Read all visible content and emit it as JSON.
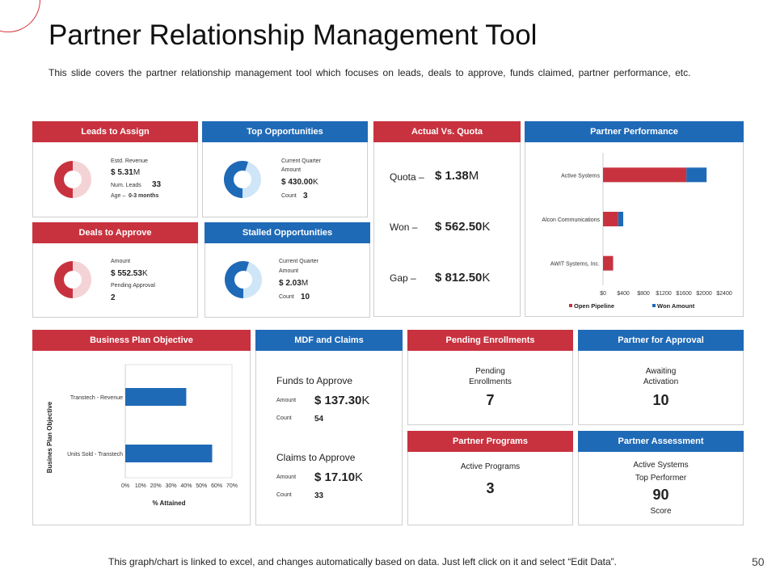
{
  "slide": {
    "title": "Partner Relationship Management Tool",
    "subtitle": "This slide covers the partner relationship management tool which focuses on leads, deals to approve, funds claimed, partner performance, etc.",
    "footer": "This graph/chart is linked to excel, and changes automatically based on data. Just left click on it and select “Edit Data”.",
    "page_number": "50"
  },
  "colors": {
    "red": "#c8323f",
    "blue": "#1f6ab7",
    "light_red": "#f4d3d6",
    "light_blue": "#cfe5f8"
  },
  "leads": {
    "header": "Leads to Assign",
    "rev_label": "Estd. Revenue",
    "rev_value": "$ 5.31",
    "rev_unit": "M",
    "num_label": "Num. Leads",
    "num_value": "33",
    "age_label": "Age –",
    "age_value": "0-3 months"
  },
  "top_opps": {
    "header": "Top Opportunities",
    "cq_label": "Current Quarter",
    "amount_label": "Amount",
    "amount_value": "$ 430.00",
    "amount_unit": "K",
    "count_label": "Count",
    "count_value": "3"
  },
  "deals": {
    "header": "Deals to Approve",
    "amount_label": "Amount",
    "amount_value": "$ 552.53",
    "amount_unit": "K",
    "pending_label": "Pending Approval",
    "pending_value": "2"
  },
  "stalled": {
    "header": "Stalled Opportunities",
    "cq_label": "Current Quarter",
    "amount_label": "Amount",
    "amount_value": "$ 2.03",
    "amount_unit": "M",
    "count_label": "Count",
    "count_value": "10"
  },
  "quota": {
    "header": "Actual Vs. Quota",
    "quota_label": "Quota –",
    "quota_value": "$ 1.38",
    "quota_unit": "M",
    "won_label": "Won –",
    "won_value": "$ 562.50",
    "won_unit": "K",
    "gap_label": "Gap –",
    "gap_value": "$ 812.50",
    "gap_unit": "K"
  },
  "partner_perf": {
    "header": "Partner Performance"
  },
  "bpo": {
    "header": "Business Plan Objective"
  },
  "mdf": {
    "header": "MDF and Claims",
    "funds_title": "Funds to Approve",
    "funds_amount_label": "Amount",
    "funds_amount_value": "$ 137.30",
    "funds_amount_unit": "K",
    "funds_count_label": "Count",
    "funds_count_value": "54",
    "claims_title": "Claims to Approve",
    "claims_amount_label": "Amount",
    "claims_amount_value": "$ 17.10",
    "claims_amount_unit": "K",
    "claims_count_label": "Count",
    "claims_count_value": "33"
  },
  "pending_enroll": {
    "header": "Pending Enrollments",
    "line1": "Pending",
    "line2": "Enrollments",
    "value": "7"
  },
  "partner_approval": {
    "header": "Partner for Approval",
    "line1": "Awaiting",
    "line2": "Activation",
    "value": "10"
  },
  "partner_programs": {
    "header": "Partner Programs",
    "line1": "Active Programs",
    "value": "3"
  },
  "partner_assess": {
    "header": "Partner Assessment",
    "line1": "Active Systems",
    "line2": "Top Performer",
    "value": "90",
    "line3": "Score"
  },
  "chart_data": [
    {
      "type": "bar",
      "orientation": "horizontal",
      "stacked": true,
      "categories": [
        "Active Systems",
        "Alcon Communications",
        "AWIT Systems, Inc."
      ],
      "series": [
        {
          "name": "Open Pipeline",
          "values": [
            1650,
            300,
            200
          ]
        },
        {
          "name": "Won Amount",
          "values": [
            400,
            100,
            0
          ]
        }
      ],
      "xlim": [
        0,
        2400
      ],
      "xticks": [
        "$0",
        "$400",
        "$800",
        "$1200",
        "$1600",
        "$2000",
        "$2400"
      ],
      "legend": "bottom"
    },
    {
      "type": "bar",
      "orientation": "horizontal",
      "categories": [
        "Transtech - Revenue",
        "Units Sold - Transtech"
      ],
      "values": [
        0.4,
        0.57
      ],
      "xlim": [
        0,
        0.7
      ],
      "xticks": [
        "0%",
        "10%",
        "20%",
        "30%",
        "40%",
        "50%",
        "60%",
        "70%"
      ],
      "xlabel": "% Attained",
      "ylabel": "Busines Plan Objective"
    },
    {
      "type": "pie",
      "donut": true,
      "charts": [
        {
          "name": "Leads to Assign",
          "values": [
            50,
            50
          ],
          "colors": [
            "#c8323f",
            "#f4d3d6"
          ]
        },
        {
          "name": "Top Opportunities",
          "values": [
            55,
            45
          ],
          "colors": [
            "#1f6ab7",
            "#cfe5f8"
          ]
        },
        {
          "name": "Deals to Approve",
          "values": [
            50,
            50
          ],
          "colors": [
            "#c8323f",
            "#f4d3d6"
          ]
        },
        {
          "name": "Stalled Opportunities",
          "values": [
            55,
            45
          ],
          "colors": [
            "#1f6ab7",
            "#cfe5f8"
          ]
        }
      ]
    }
  ]
}
